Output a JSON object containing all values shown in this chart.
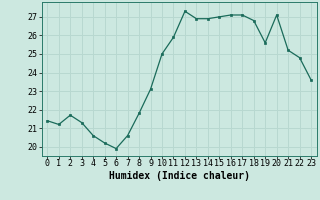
{
  "x": [
    0,
    1,
    2,
    3,
    4,
    5,
    6,
    7,
    8,
    9,
    10,
    11,
    12,
    13,
    14,
    15,
    16,
    17,
    18,
    19,
    20,
    21,
    22,
    23
  ],
  "y": [
    21.4,
    21.2,
    21.7,
    21.3,
    20.6,
    20.2,
    19.9,
    20.6,
    21.8,
    23.1,
    25.0,
    25.9,
    27.3,
    26.9,
    26.9,
    27.0,
    27.1,
    27.1,
    26.8,
    25.6,
    27.1,
    25.2,
    24.8,
    23.6
  ],
  "line_color": "#1a6b5a",
  "marker_color": "#1a6b5a",
  "bg_color": "#cce8e0",
  "grid_color": "#b8d8d0",
  "xlabel": "Humidex (Indice chaleur)",
  "ylim": [
    19.5,
    27.8
  ],
  "yticks": [
    20,
    21,
    22,
    23,
    24,
    25,
    26,
    27
  ],
  "xticks": [
    0,
    1,
    2,
    3,
    4,
    5,
    6,
    7,
    8,
    9,
    10,
    11,
    12,
    13,
    14,
    15,
    16,
    17,
    18,
    19,
    20,
    21,
    22,
    23
  ],
  "label_fontsize": 7.0,
  "tick_fontsize": 6.0
}
